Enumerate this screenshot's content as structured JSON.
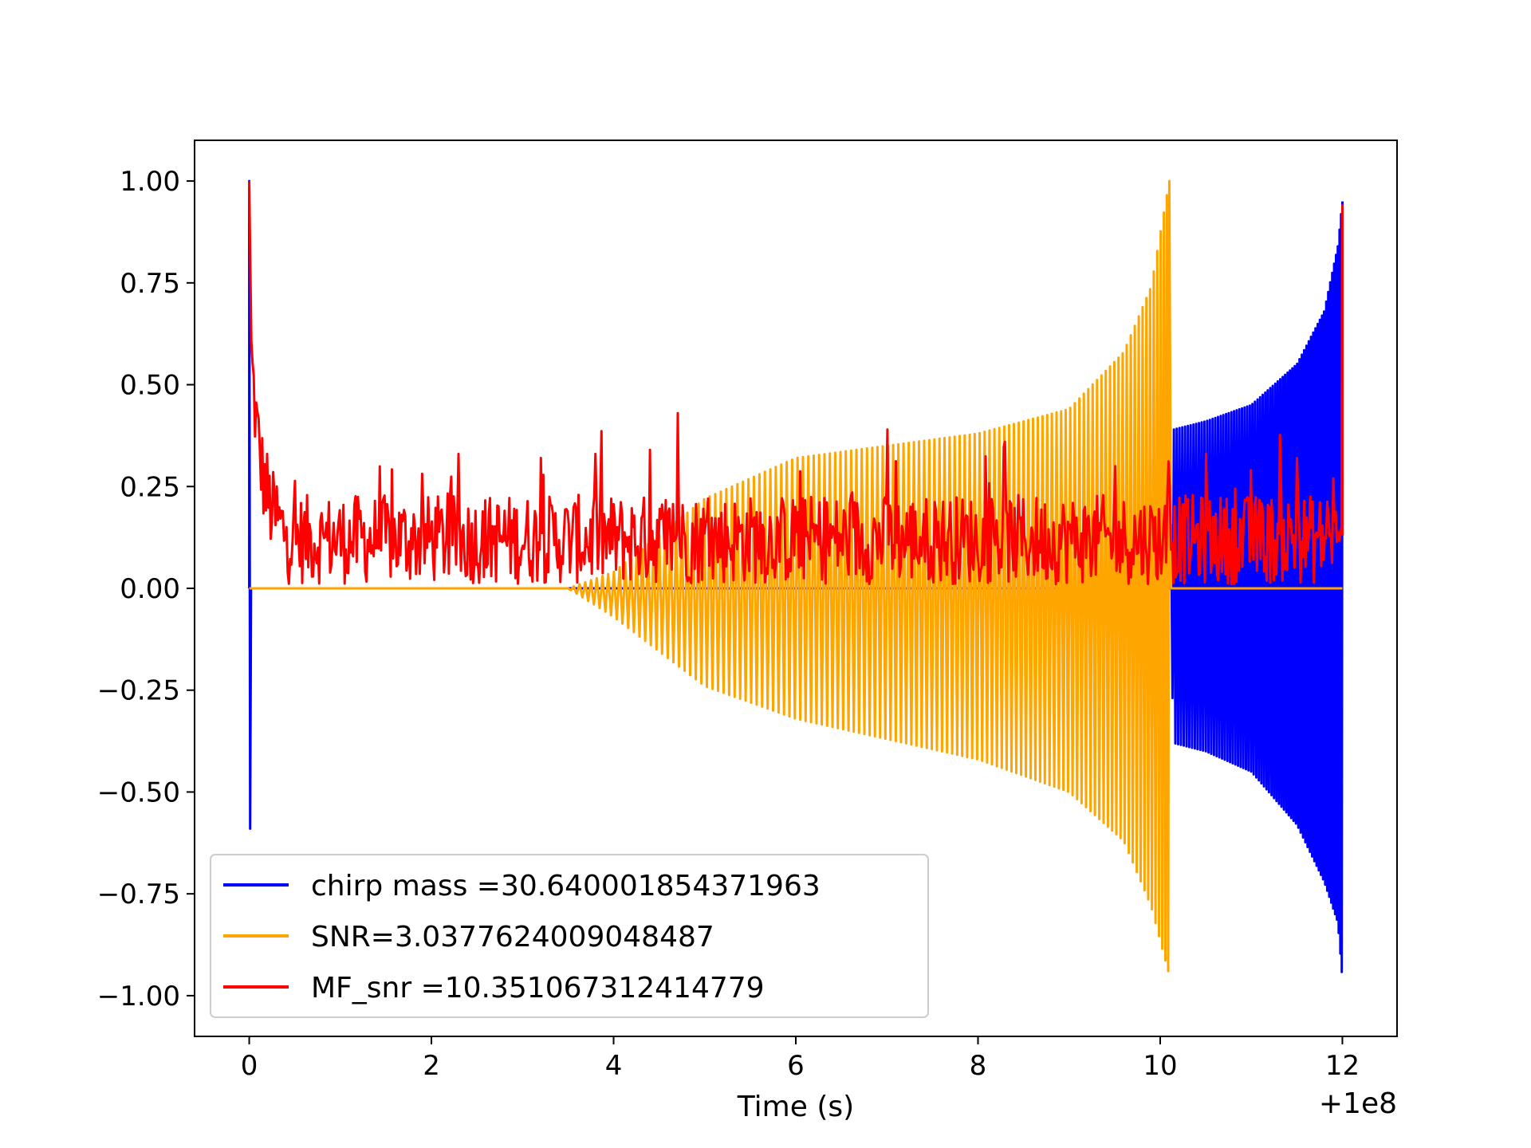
{
  "chart_data": {
    "type": "line",
    "title": "",
    "xlabel": "Time (s)",
    "ylabel": "",
    "x_offset_label": "+1e8",
    "xlim": [
      -0.6,
      12.6
    ],
    "ylim": [
      -1.1,
      1.1
    ],
    "xticks": [
      0,
      2,
      4,
      6,
      8,
      10,
      12
    ],
    "xtick_labels": [
      "0",
      "2",
      "4",
      "6",
      "8",
      "10",
      "12"
    ],
    "yticks": [
      1.0,
      0.75,
      0.5,
      0.25,
      0.0,
      -0.25,
      -0.5,
      -0.75,
      -1.0
    ],
    "ytick_labels": [
      "1.00",
      "0.75",
      "0.50",
      "0.25",
      "0.00",
      "−0.25",
      "−0.50",
      "−0.75",
      "−1.00"
    ],
    "grid": false,
    "legend_position": "lower-left",
    "series": [
      {
        "name": "chirp mass =30.640001854371963",
        "color": "#0000ff",
        "description": "chirp waveform: spike to 1.0 and -0.59 at t=0, flat 0 until ~10.1, then oscillation growing from about ±0.38 at t=10.1 to about +0.95/-0.96 at t=12",
        "points": [
          [
            0,
            0
          ],
          [
            0,
            1.0
          ],
          [
            0.01,
            -0.59
          ],
          [
            0.02,
            0
          ],
          [
            10.1,
            0
          ],
          [
            10.15,
            0.39
          ],
          [
            10.15,
            -0.38
          ],
          [
            10.5,
            0.41
          ],
          [
            10.5,
            -0.4
          ],
          [
            11.0,
            0.45
          ],
          [
            11.0,
            -0.45
          ],
          [
            11.5,
            0.55
          ],
          [
            11.5,
            -0.58
          ],
          [
            11.8,
            0.68
          ],
          [
            11.8,
            -0.72
          ],
          [
            11.95,
            0.84
          ],
          [
            11.95,
            -0.82
          ],
          [
            12.0,
            0.95
          ],
          [
            12.0,
            -0.96
          ]
        ]
      },
      {
        "name": "SNR=3.0377624009048487",
        "color": "#ffa500",
        "description": "flat 0 until ~3.5, then oscillation with amplitude growing to about +1.0/-0.95 at t=10.1, then flat 0 until 12",
        "points": [
          [
            0,
            0
          ],
          [
            3.5,
            0
          ],
          [
            4.0,
            0.04
          ],
          [
            4.0,
            -0.07
          ],
          [
            5.0,
            0.22
          ],
          [
            5.0,
            -0.24
          ],
          [
            6.0,
            0.32
          ],
          [
            6.0,
            -0.32
          ],
          [
            7.0,
            0.35
          ],
          [
            7.0,
            -0.37
          ],
          [
            8.0,
            0.38
          ],
          [
            8.0,
            -0.42
          ],
          [
            9.0,
            0.44
          ],
          [
            9.0,
            -0.5
          ],
          [
            9.6,
            0.58
          ],
          [
            9.6,
            -0.62
          ],
          [
            9.9,
            0.74
          ],
          [
            9.9,
            -0.78
          ],
          [
            10.1,
            1.0
          ],
          [
            10.1,
            -0.95
          ],
          [
            10.15,
            0
          ],
          [
            12.0,
            0
          ]
        ]
      },
      {
        "name": "MF_snr =10.351067312414779",
        "color": "#ff0000",
        "description": "starts at 1.0 at t=0, decays quickly to a noisy band mostly between 0.0 and 0.35 across the whole range, with peaks near 0.43 at t≈4.7, 0.39 at t≈7.0, and a final spike to 0.94 at t=12",
        "points": [
          [
            0,
            1.0
          ],
          [
            0.05,
            0.55
          ],
          [
            0.1,
            0.4
          ],
          [
            0.2,
            0.33
          ],
          [
            0.3,
            0.25
          ],
          [
            0.5,
            0.2
          ],
          [
            1.0,
            0.12
          ],
          [
            2.3,
            0.33
          ],
          [
            3.2,
            0.32
          ],
          [
            3.8,
            0.33
          ],
          [
            4.4,
            0.34
          ],
          [
            4.7,
            0.43
          ],
          [
            6.0,
            0.2
          ],
          [
            7.0,
            0.39
          ],
          [
            8.3,
            0.36
          ],
          [
            9.5,
            0.3
          ],
          [
            10.1,
            0.25
          ],
          [
            10.5,
            0.33
          ],
          [
            11.0,
            0.29
          ],
          [
            11.5,
            0.32
          ],
          [
            11.9,
            0.27
          ],
          [
            12.0,
            0.94
          ]
        ]
      }
    ]
  }
}
